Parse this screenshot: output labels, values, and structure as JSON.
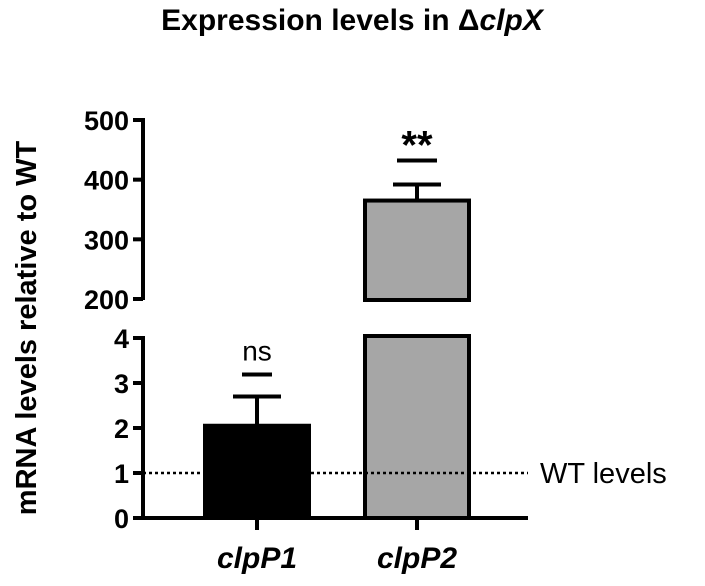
{
  "chart_data": {
    "type": "bar",
    "title_main": "Expression levels in Δ",
    "title_gene": "clpX",
    "ylabel": "mRNA levels relative to WT",
    "categories": [
      "clpP1",
      "clpP2"
    ],
    "values": [
      2.05,
      365
    ],
    "errors": [
      0.65,
      27
    ],
    "bar_colors": [
      "#000000",
      "#a6a6a6"
    ],
    "significance": [
      "ns",
      "**"
    ],
    "y_axis": {
      "broken": true,
      "lower_segment": {
        "range": [
          0,
          4
        ],
        "ticks": [
          "0",
          "1",
          "2",
          "3",
          "4"
        ]
      },
      "upper_segment": {
        "range": [
          200,
          500
        ],
        "ticks": [
          "200",
          "300",
          "400",
          "500"
        ]
      }
    },
    "reference_line": {
      "value": 1,
      "label": "WT levels",
      "style": "dotted"
    }
  }
}
